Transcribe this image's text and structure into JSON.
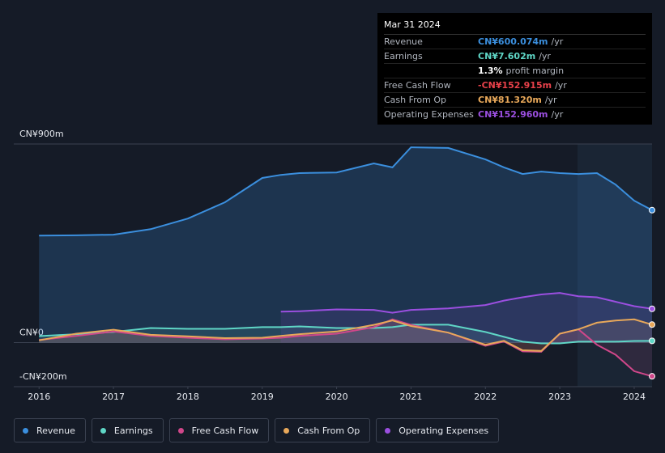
{
  "chart_data": {
    "type": "line",
    "x": [
      2016,
      2016.5,
      2017,
      2017.5,
      2018,
      2018.5,
      2019,
      2019.25,
      2019.5,
      2020,
      2020.5,
      2020.75,
      2021,
      2021.5,
      2022,
      2022.25,
      2022.5,
      2022.75,
      2023,
      2023.25,
      2023.5,
      2023.75,
      2024,
      2024.24
    ],
    "xlim": [
      2015.66,
      2024.24
    ],
    "xticks": [
      2016,
      2017,
      2018,
      2019,
      2020,
      2021,
      2022,
      2023,
      2024
    ],
    "ylim": [
      -200,
      900
    ],
    "yticks": [
      {
        "value": -200,
        "label": "-CN¥200m"
      },
      {
        "value": 0,
        "label": "CN¥0"
      },
      {
        "value": 900,
        "label": "CN¥900m"
      }
    ],
    "grid": true,
    "series": [
      {
        "name": "Revenue",
        "color": "#3b8fde",
        "values": [
          485,
          486,
          489,
          514,
          562,
          636,
          746,
          760,
          768,
          771,
          812,
          794,
          885,
          882,
          830,
          794,
          764,
          775,
          768,
          764,
          768,
          716,
          643,
          600.074
        ]
      },
      {
        "name": "Earnings",
        "color": "#5fd6c6",
        "values": [
          29,
          38,
          48,
          66,
          62,
          62,
          70,
          70,
          73,
          66,
          66,
          70,
          81,
          81,
          48,
          26,
          4,
          -4,
          -4,
          4,
          4,
          4,
          7,
          7.602
        ]
      },
      {
        "name": "Free Cash Flow",
        "color": "#d0478a",
        "values": [
          12,
          30,
          50,
          30,
          22,
          15,
          18,
          22,
          30,
          40,
          70,
          105,
          80,
          45,
          -15,
          5,
          -40,
          -42,
          40,
          60,
          -10,
          -55,
          -130,
          -152.915
        ]
      },
      {
        "name": "Cash From Op",
        "color": "#e8a85a",
        "values": [
          10,
          40,
          58,
          35,
          28,
          20,
          22,
          30,
          38,
          50,
          80,
          100,
          75,
          45,
          -10,
          8,
          -35,
          -38,
          40,
          60,
          90,
          100,
          105,
          81.32
        ]
      },
      {
        "name": "Operating Expenses",
        "color": "#9b4fe0",
        "values": [
          null,
          null,
          null,
          null,
          null,
          null,
          null,
          140,
          142,
          150,
          148,
          135,
          148,
          155,
          170,
          190,
          205,
          218,
          225,
          210,
          205,
          185,
          165,
          152.96
        ]
      }
    ]
  },
  "tooltip": {
    "date": "Mar 31 2024",
    "rows": [
      {
        "label": "Revenue",
        "value": "CN¥600.074m",
        "unit": "/yr"
      },
      {
        "label": "Earnings",
        "value": "CN¥7.602m",
        "unit": "/yr"
      },
      {
        "label": "Free Cash Flow",
        "value": "-CN¥152.915m",
        "unit": "/yr"
      },
      {
        "label": "Cash From Op",
        "value": "CN¥81.320m",
        "unit": "/yr"
      },
      {
        "label": "Operating Expenses",
        "value": "CN¥152.960m",
        "unit": "/yr"
      }
    ],
    "margin": {
      "value": "1.3%",
      "text": "profit margin"
    }
  }
}
